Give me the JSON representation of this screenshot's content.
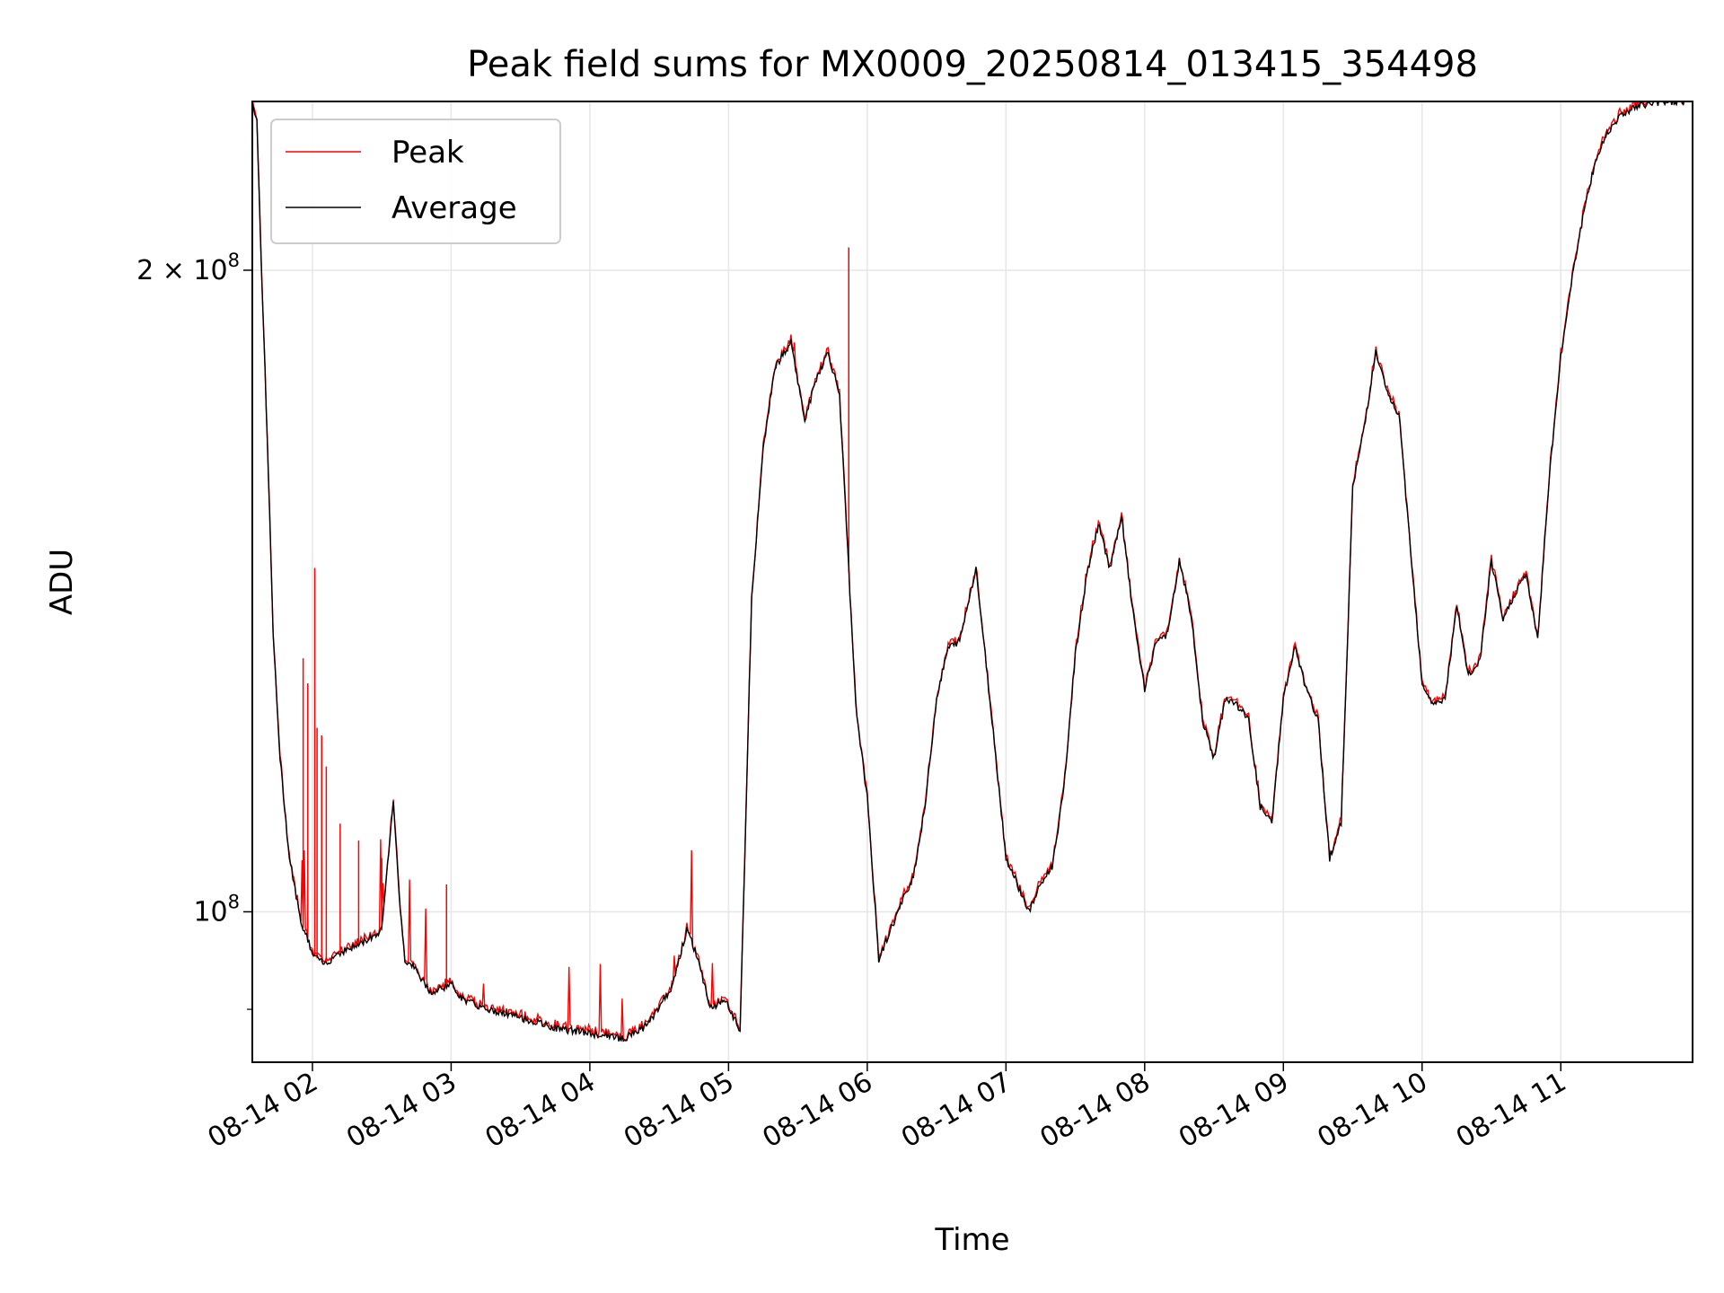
{
  "chart_data": {
    "type": "line",
    "title": "Peak field sums for MX0009_20250814_013415_354498",
    "xlabel": "Time",
    "ylabel": "ADU",
    "y_scale": "log",
    "ylim": [
      85000000,
      240000000
    ],
    "xlim": [
      "08-14 01:34",
      "08-14 11:57"
    ],
    "grid": true,
    "legend_placement": "top-left",
    "x_ticks": [
      "08-14 02",
      "08-14 03",
      "08-14 04",
      "08-14 05",
      "08-14 06",
      "08-14 07",
      "08-14 08",
      "08-14 09",
      "08-14 10",
      "08-14 11"
    ],
    "y_ticks": [
      {
        "value": 100000000,
        "base": "10",
        "exp": "8",
        "prefix": ""
      },
      {
        "value": 200000000,
        "base": "2 × 10",
        "exp": "8",
        "prefix": ""
      }
    ],
    "series": [
      {
        "name": "Average",
        "color": "#000000",
        "x": [
          "08-14 01:34",
          "08-14 01:36",
          "08-14 01:38",
          "08-14 01:41",
          "08-14 01:43",
          "08-14 01:46",
          "08-14 01:50",
          "08-14 01:55",
          "08-14 01:58",
          "08-14 02:00",
          "08-14 02:05",
          "08-14 02:08",
          "08-14 02:10",
          "08-14 02:20",
          "08-14 02:30",
          "08-14 02:35",
          "08-14 02:38",
          "08-14 02:40",
          "08-14 02:43",
          "08-14 02:47",
          "08-14 02:52",
          "08-14 02:55",
          "08-14 03:00",
          "08-14 03:05",
          "08-14 03:15",
          "08-14 03:30",
          "08-14 03:45",
          "08-14 04:00",
          "08-14 04:15",
          "08-14 04:25",
          "08-14 04:35",
          "08-14 04:42",
          "08-14 04:47",
          "08-14 04:52",
          "08-14 04:58",
          "08-14 05:05",
          "08-14 05:10",
          "08-14 05:15",
          "08-14 05:20",
          "08-14 05:27",
          "08-14 05:33",
          "08-14 05:38",
          "08-14 05:43",
          "08-14 05:48",
          "08-14 05:55",
          "08-14 06:00",
          "08-14 06:05",
          "08-14 06:10",
          "08-14 06:15",
          "08-14 06:20",
          "08-14 06:25",
          "08-14 06:30",
          "08-14 06:35",
          "08-14 06:40",
          "08-14 06:47",
          "08-14 06:55",
          "08-14 07:00",
          "08-14 07:05",
          "08-14 07:10",
          "08-14 07:15",
          "08-14 07:20",
          "08-14 07:25",
          "08-14 07:30",
          "08-14 07:35",
          "08-14 07:40",
          "08-14 07:45",
          "08-14 07:50",
          "08-14 07:55",
          "08-14 08:00",
          "08-14 08:05",
          "08-14 08:10",
          "08-14 08:15",
          "08-14 08:20",
          "08-14 08:25",
          "08-14 08:30",
          "08-14 08:35",
          "08-14 08:40",
          "08-14 08:45",
          "08-14 08:50",
          "08-14 08:55",
          "08-14 09:00",
          "08-14 09:05",
          "08-14 09:10",
          "08-14 09:15",
          "08-14 09:20",
          "08-14 09:25",
          "08-14 09:30",
          "08-14 09:35",
          "08-14 09:40",
          "08-14 09:45",
          "08-14 09:50",
          "08-14 09:55",
          "08-14 10:00",
          "08-14 10:05",
          "08-14 10:10",
          "08-14 10:15",
          "08-14 10:20",
          "08-14 10:25",
          "08-14 10:30",
          "08-14 10:35",
          "08-14 10:40",
          "08-14 10:45",
          "08-14 10:50",
          "08-14 10:55",
          "08-14 11:00",
          "08-14 11:05",
          "08-14 11:10",
          "08-14 11:15",
          "08-14 11:20",
          "08-14 11:25",
          "08-14 11:30",
          "08-14 11:35",
          "08-14 11:40",
          "08-14 11:45",
          "08-14 11:50",
          "08-14 11:57"
        ],
        "values": [
          240000000,
          235000000,
          200000000,
          160000000,
          135000000,
          118000000,
          106000000,
          99000000,
          97000000,
          95500000,
          94500000,
          95000000,
          95500000,
          96500000,
          98000000,
          113000000,
          100000000,
          95000000,
          94500000,
          93000000,
          91500000,
          92000000,
          92500000,
          91000000,
          90000000,
          89200000,
          88200000,
          87700000,
          87200000,
          88500000,
          92000000,
          98000000,
          95000000,
          90000000,
          91000000,
          88000000,
          140000000,
          165000000,
          180000000,
          185000000,
          170000000,
          178000000,
          183000000,
          175000000,
          125000000,
          113000000,
          95000000,
          98000000,
          101000000,
          104000000,
          112000000,
          126000000,
          133000000,
          134000000,
          145000000,
          120000000,
          106000000,
          103000000,
          100000000,
          103000000,
          105000000,
          114000000,
          132000000,
          144000000,
          152000000,
          145000000,
          153000000,
          138000000,
          127000000,
          134000000,
          135000000,
          146000000,
          138000000,
          123000000,
          118000000,
          126000000,
          125000000,
          123000000,
          112000000,
          110000000,
          126000000,
          133000000,
          127000000,
          123000000,
          106000000,
          110000000,
          158000000,
          169000000,
          183000000,
          175000000,
          171000000,
          148000000,
          128000000,
          125000000,
          126000000,
          139000000,
          129000000,
          131000000,
          146000000,
          137000000,
          141000000,
          144000000,
          134000000,
          160000000,
          182000000,
          199000000,
          213000000,
          225000000,
          232000000,
          236000000,
          238000000,
          239000000,
          239500000,
          240000000,
          240000000,
          240000000
        ]
      },
      {
        "name": "Peak",
        "color": "#ff0000"
      }
    ]
  }
}
